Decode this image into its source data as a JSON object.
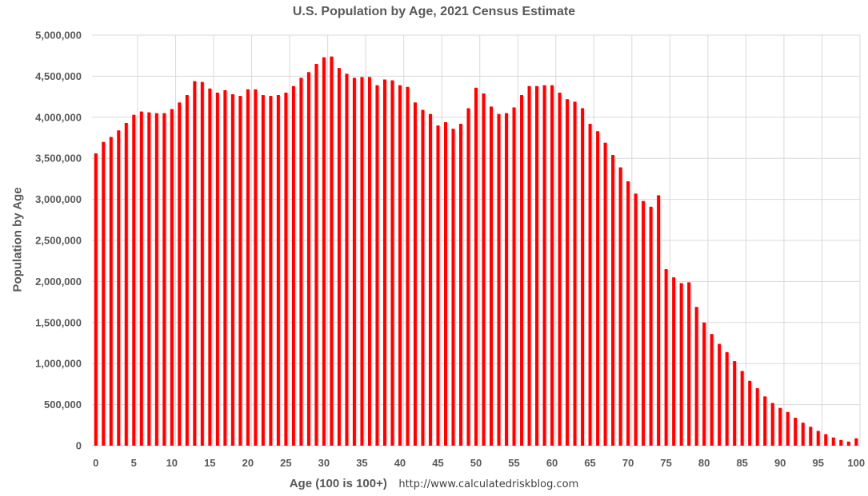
{
  "chart_data": {
    "type": "bar",
    "title": "U.S. Population by Age, 2021 Census Estimate",
    "xlabel": "Age (100 is 100+)",
    "ylabel": "Population by Age",
    "source": "http://www.calculatedriskblog.com",
    "ylim": [
      0,
      5000000
    ],
    "y_ticks": [
      0,
      500000,
      1000000,
      1500000,
      2000000,
      2500000,
      3000000,
      3500000,
      4000000,
      4500000,
      5000000
    ],
    "y_tick_labels": [
      "0",
      "500,000",
      "1,000,000",
      "1,500,000",
      "2,000,000",
      "2,500,000",
      "3,000,000",
      "3,500,000",
      "4,000,000",
      "4,500,000",
      "5,000,000"
    ],
    "x_tick_labels": [
      "0",
      "5",
      "10",
      "15",
      "20",
      "25",
      "30",
      "35",
      "40",
      "45",
      "50",
      "55",
      "60",
      "65",
      "70",
      "75",
      "80",
      "85",
      "90",
      "95",
      "100"
    ],
    "x_tick_every": 5,
    "grid": true,
    "bar_color": "#ff0000",
    "categories": [
      "0",
      "1",
      "2",
      "3",
      "4",
      "5",
      "6",
      "7",
      "8",
      "9",
      "10",
      "11",
      "12",
      "13",
      "14",
      "15",
      "16",
      "17",
      "18",
      "19",
      "20",
      "21",
      "22",
      "23",
      "24",
      "25",
      "26",
      "27",
      "28",
      "29",
      "30",
      "31",
      "32",
      "33",
      "34",
      "35",
      "36",
      "37",
      "38",
      "39",
      "40",
      "41",
      "42",
      "43",
      "44",
      "45",
      "46",
      "47",
      "48",
      "49",
      "50",
      "51",
      "52",
      "53",
      "54",
      "55",
      "56",
      "57",
      "58",
      "59",
      "60",
      "61",
      "62",
      "63",
      "64",
      "65",
      "66",
      "67",
      "68",
      "69",
      "70",
      "71",
      "72",
      "73",
      "74",
      "75",
      "76",
      "77",
      "78",
      "79",
      "80",
      "81",
      "82",
      "83",
      "84",
      "85",
      "86",
      "87",
      "88",
      "89",
      "90",
      "91",
      "92",
      "93",
      "94",
      "95",
      "96",
      "97",
      "98",
      "99",
      "100"
    ],
    "values": [
      3560000,
      3700000,
      3760000,
      3840000,
      3930000,
      4030000,
      4070000,
      4060000,
      4050000,
      4050000,
      4100000,
      4180000,
      4270000,
      4440000,
      4430000,
      4350000,
      4300000,
      4330000,
      4280000,
      4260000,
      4340000,
      4340000,
      4270000,
      4260000,
      4270000,
      4300000,
      4380000,
      4480000,
      4550000,
      4650000,
      4730000,
      4740000,
      4600000,
      4530000,
      4480000,
      4490000,
      4490000,
      4390000,
      4460000,
      4450000,
      4390000,
      4370000,
      4180000,
      4090000,
      4040000,
      3900000,
      3940000,
      3860000,
      3920000,
      4110000,
      4360000,
      4290000,
      4130000,
      4040000,
      4050000,
      4120000,
      4270000,
      4380000,
      4380000,
      4390000,
      4390000,
      4300000,
      4220000,
      4190000,
      4110000,
      3920000,
      3830000,
      3690000,
      3540000,
      3390000,
      3220000,
      3070000,
      2980000,
      2910000,
      3050000,
      2150000,
      2050000,
      1980000,
      1990000,
      1690000,
      1500000,
      1360000,
      1240000,
      1140000,
      1030000,
      910000,
      790000,
      700000,
      600000,
      520000,
      460000,
      410000,
      340000,
      280000,
      230000,
      180000,
      140000,
      100000,
      70000,
      50000,
      90000
    ]
  }
}
